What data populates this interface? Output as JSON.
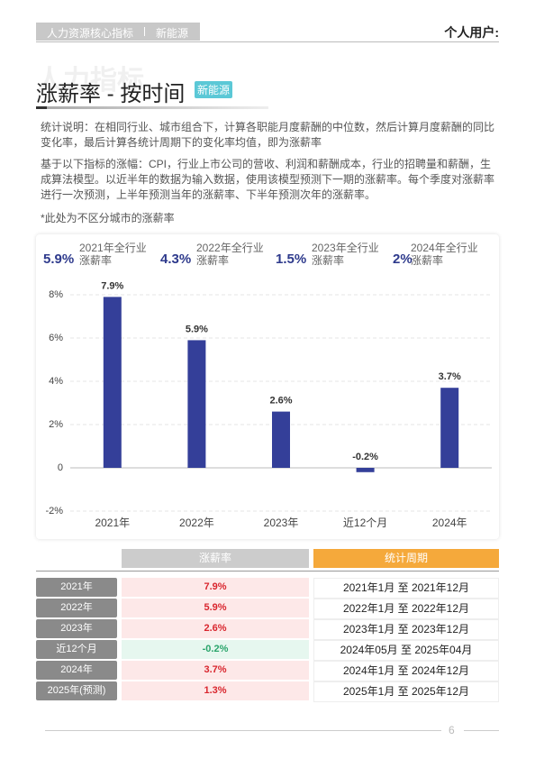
{
  "header": {
    "tags": [
      "人力资源核心指标",
      "新能源"
    ],
    "user": "个人用户:",
    "watermark": "人力指标"
  },
  "title": "涨薪率 - 按时间",
  "badge": "新能源",
  "description": [
    "统计说明：在相同行业、城市组合下，计算各职能月度薪酬的中位数，然后计算月度薪酬的同比变化率，最后计算各统计周期下的变化率均值，即为涨薪率",
    "基于以下指标的涨幅：CPI，行业上市公司的营收、利润和薪酬成本，行业的招聘量和薪酬，生成算法模型。以近半年的数据为输入数据，使用该模型预测下一期的涨薪率。每个季度对涨薪率进行一次预测，上半年预测当年的涨薪率、下半年预测次年的涨薪率。"
  ],
  "note": "*此处为不区分城市的涨薪率",
  "kpis": [
    {
      "value": "5.9%",
      "label": "2021年全行业涨薪率"
    },
    {
      "value": "4.3%",
      "label": "2022年全行业涨薪率"
    },
    {
      "value": "1.5%",
      "label": "2023年全行业涨薪率"
    },
    {
      "value": "2%",
      "label": "2024年全行业涨薪率"
    }
  ],
  "chart_data": {
    "type": "bar",
    "categories": [
      "2021年",
      "2022年",
      "2023年",
      "近12个月",
      "2024年"
    ],
    "values": [
      7.9,
      5.9,
      2.6,
      -0.2,
      3.7
    ],
    "value_labels": [
      "7.9%",
      "5.9%",
      "2.6%",
      "-0.2%",
      "3.7%"
    ],
    "color": "#343f99",
    "ylim": [
      -2,
      8
    ],
    "yticks": [
      {
        "value": -2,
        "label": "-2%"
      },
      {
        "value": 0,
        "label": "0"
      },
      {
        "value": 2,
        "label": "2%"
      },
      {
        "value": 4,
        "label": "4%"
      },
      {
        "value": 6,
        "label": "6%"
      },
      {
        "value": 8,
        "label": "8%"
      }
    ],
    "grid": true
  },
  "table": {
    "headers": [
      "涨薪率",
      "统计周期"
    ],
    "rows": [
      [
        "2021年",
        "7.9%",
        "2021年1月 至 2021年12月"
      ],
      [
        "2022年",
        "5.9%",
        "2022年1月 至 2022年12月"
      ],
      [
        "2023年",
        "2.6%",
        "2023年1月 至 2023年12月"
      ],
      [
        "近12个月",
        "-0.2%",
        "2024年05月 至 2025年04月"
      ],
      [
        "2024年",
        "3.7%",
        "2024年1月 至 2024年12月"
      ],
      [
        "2025年(预测)",
        "1.3%",
        "2025年1月 至 2025年12月"
      ]
    ]
  },
  "footer": {
    "page": "6"
  }
}
